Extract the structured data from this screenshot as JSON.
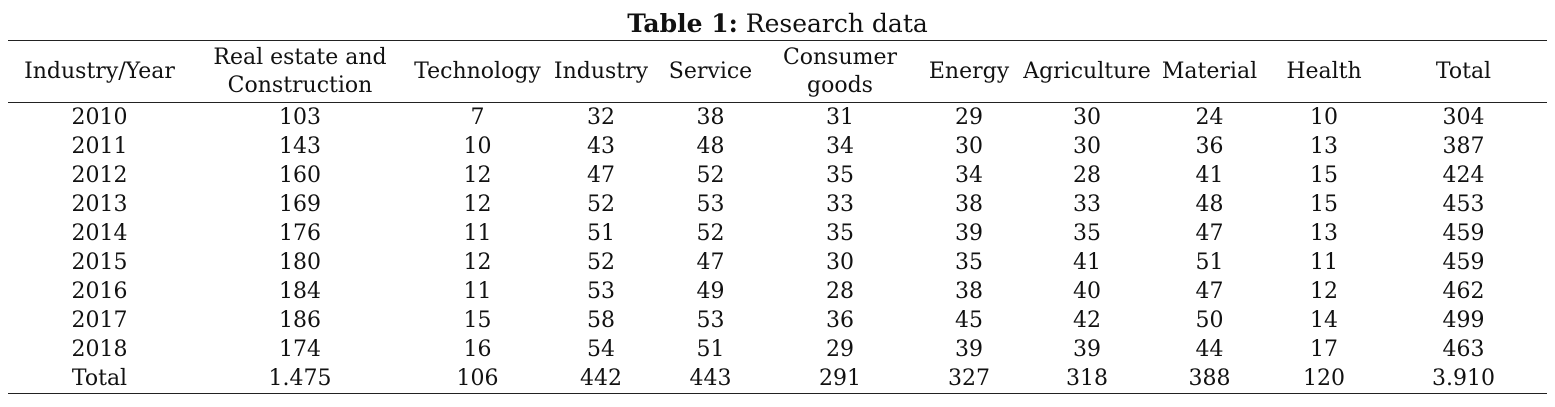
{
  "caption": {
    "label": "Table 1:",
    "title": "Research data"
  },
  "table": {
    "headers": [
      "Industry/Year",
      "Real estate and Construction",
      "Technology",
      "Industry",
      "Service",
      "Consumer goods",
      "Energy",
      "Agriculture",
      "Material",
      "Health",
      "Total"
    ],
    "rows": [
      [
        "2010",
        "103",
        "7",
        "32",
        "38",
        "31",
        "29",
        "30",
        "24",
        "10",
        "304"
      ],
      [
        "2011",
        "143",
        "10",
        "43",
        "48",
        "34",
        "30",
        "30",
        "36",
        "13",
        "387"
      ],
      [
        "2012",
        "160",
        "12",
        "47",
        "52",
        "35",
        "34",
        "28",
        "41",
        "15",
        "424"
      ],
      [
        "2013",
        "169",
        "12",
        "52",
        "53",
        "33",
        "38",
        "33",
        "48",
        "15",
        "453"
      ],
      [
        "2014",
        "176",
        "11",
        "51",
        "52",
        "35",
        "39",
        "35",
        "47",
        "13",
        "459"
      ],
      [
        "2015",
        "180",
        "12",
        "52",
        "47",
        "30",
        "35",
        "41",
        "51",
        "11",
        "459"
      ],
      [
        "2016",
        "184",
        "11",
        "53",
        "49",
        "28",
        "38",
        "40",
        "47",
        "12",
        "462"
      ],
      [
        "2017",
        "186",
        "15",
        "58",
        "53",
        "36",
        "45",
        "42",
        "50",
        "14",
        "499"
      ],
      [
        "2018",
        "174",
        "16",
        "54",
        "51",
        "29",
        "39",
        "39",
        "44",
        "17",
        "463"
      ],
      [
        "Total",
        "1.475",
        "106",
        "442",
        "443",
        "291",
        "327",
        "318",
        "388",
        "120",
        "3.910"
      ]
    ]
  }
}
